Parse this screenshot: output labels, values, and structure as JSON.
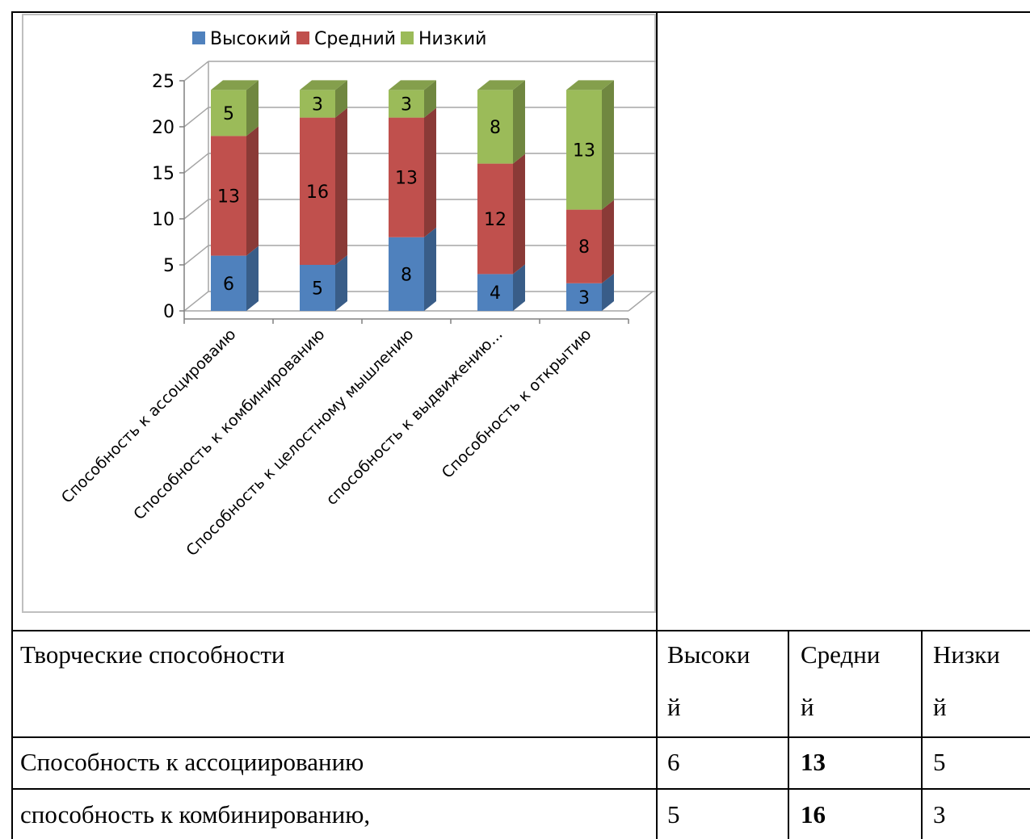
{
  "chart_data": {
    "type": "bar",
    "stacked": true,
    "three_d": true,
    "categories": [
      "Способность к ассоцировании ассоцированию",
      "Способность к комбинированию",
      "Способность к целостному мышлению",
      "способность к выдвижению...",
      "Способность к открытию"
    ],
    "category_labels": [
      "Способность к ассоцироваию",
      "Способность к комбинированию",
      "Способность к целостному мышлению",
      "способность к выдвижению...",
      "Способность к открытию"
    ],
    "series": [
      {
        "name": "Высокий",
        "values": [
          6,
          5,
          8,
          4,
          3
        ],
        "color": "#4f81bd"
      },
      {
        "name": "Средний",
        "values": [
          13,
          16,
          13,
          12,
          8
        ],
        "color": "#c0504d"
      },
      {
        "name": "Низкий",
        "values": [
          5,
          3,
          3,
          8,
          13
        ],
        "color": "#9bbb59"
      }
    ],
    "ylim": [
      0,
      25
    ],
    "yticks": [
      "0",
      "5",
      "10",
      "15",
      "20",
      "25"
    ],
    "grid": true,
    "legend_position": "top"
  },
  "table": {
    "header": {
      "label": "Творческие способности",
      "col1_line1": "Высоки",
      "col1_line2": "й",
      "col2_line1": "Средни",
      "col2_line2": "й",
      "col3_line1": "Низки",
      "col3_line2": "й"
    },
    "rows": [
      {
        "label": "Способность к ассоциированию",
        "high": "6",
        "mid": "13",
        "low": "5"
      },
      {
        "label": "способность к комбинированию,",
        "high": "5",
        "mid": "16",
        "low": "3"
      }
    ]
  }
}
